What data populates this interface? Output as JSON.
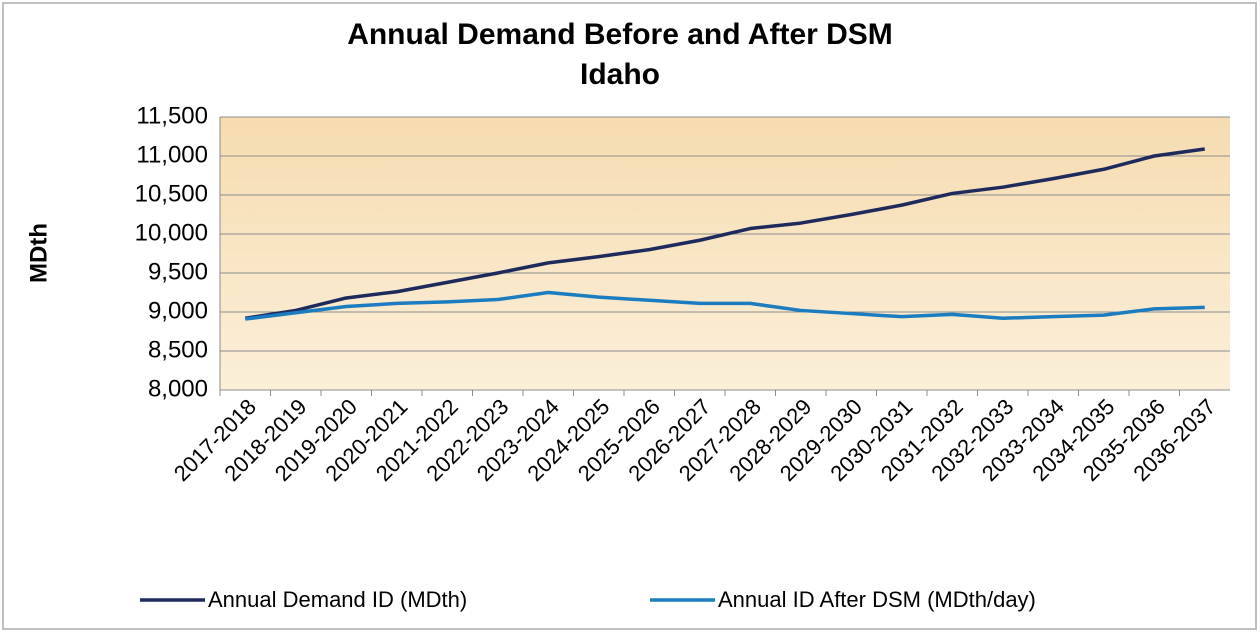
{
  "chart_data": {
    "type": "line",
    "title": "Annual Demand Before and After DSM",
    "subtitle": "Idaho",
    "y_label": "MDth",
    "categories": [
      "2017-2018",
      "2018-2019",
      "2019-2020",
      "2020-2021",
      "2021-2022",
      "2022-2023",
      "2023-2024",
      "2024-2025",
      "2025-2026",
      "2026-2027",
      "2027-2028",
      "2028-2029",
      "2029-2030",
      "2030-2031",
      "2031-2032",
      "2032-2033",
      "2033-2034",
      "2034-2035",
      "2035-2036",
      "2036-2037"
    ],
    "series": [
      {
        "name": "Annual Demand ID (MDth)",
        "color": "#1f2a5c",
        "values": [
          8920,
          9020,
          9180,
          9260,
          9380,
          9500,
          9630,
          9710,
          9800,
          9920,
          10070,
          10140,
          10250,
          10370,
          10520,
          10600,
          10710,
          10830,
          11000,
          11090
        ]
      },
      {
        "name": "Annual ID After DSM (MDth/day)",
        "color": "#1b7cc0",
        "values": [
          8910,
          8990,
          9070,
          9110,
          9130,
          9160,
          9250,
          9190,
          9150,
          9110,
          9110,
          9020,
          8980,
          8940,
          8970,
          8920,
          8940,
          8960,
          9040,
          9060
        ]
      }
    ],
    "ylim": [
      8000,
      11500
    ],
    "yticks": [
      {
        "value": 8000,
        "label": "8,000"
      },
      {
        "value": 8500,
        "label": "8,500"
      },
      {
        "value": 9000,
        "label": "9,000"
      },
      {
        "value": 9500,
        "label": "9,500"
      },
      {
        "value": 10000,
        "label": "10,000"
      },
      {
        "value": 10500,
        "label": "10,500"
      },
      {
        "value": 11000,
        "label": "11,000"
      },
      {
        "value": 11500,
        "label": "11,500"
      }
    ],
    "grid": true,
    "legend": "bottom"
  }
}
